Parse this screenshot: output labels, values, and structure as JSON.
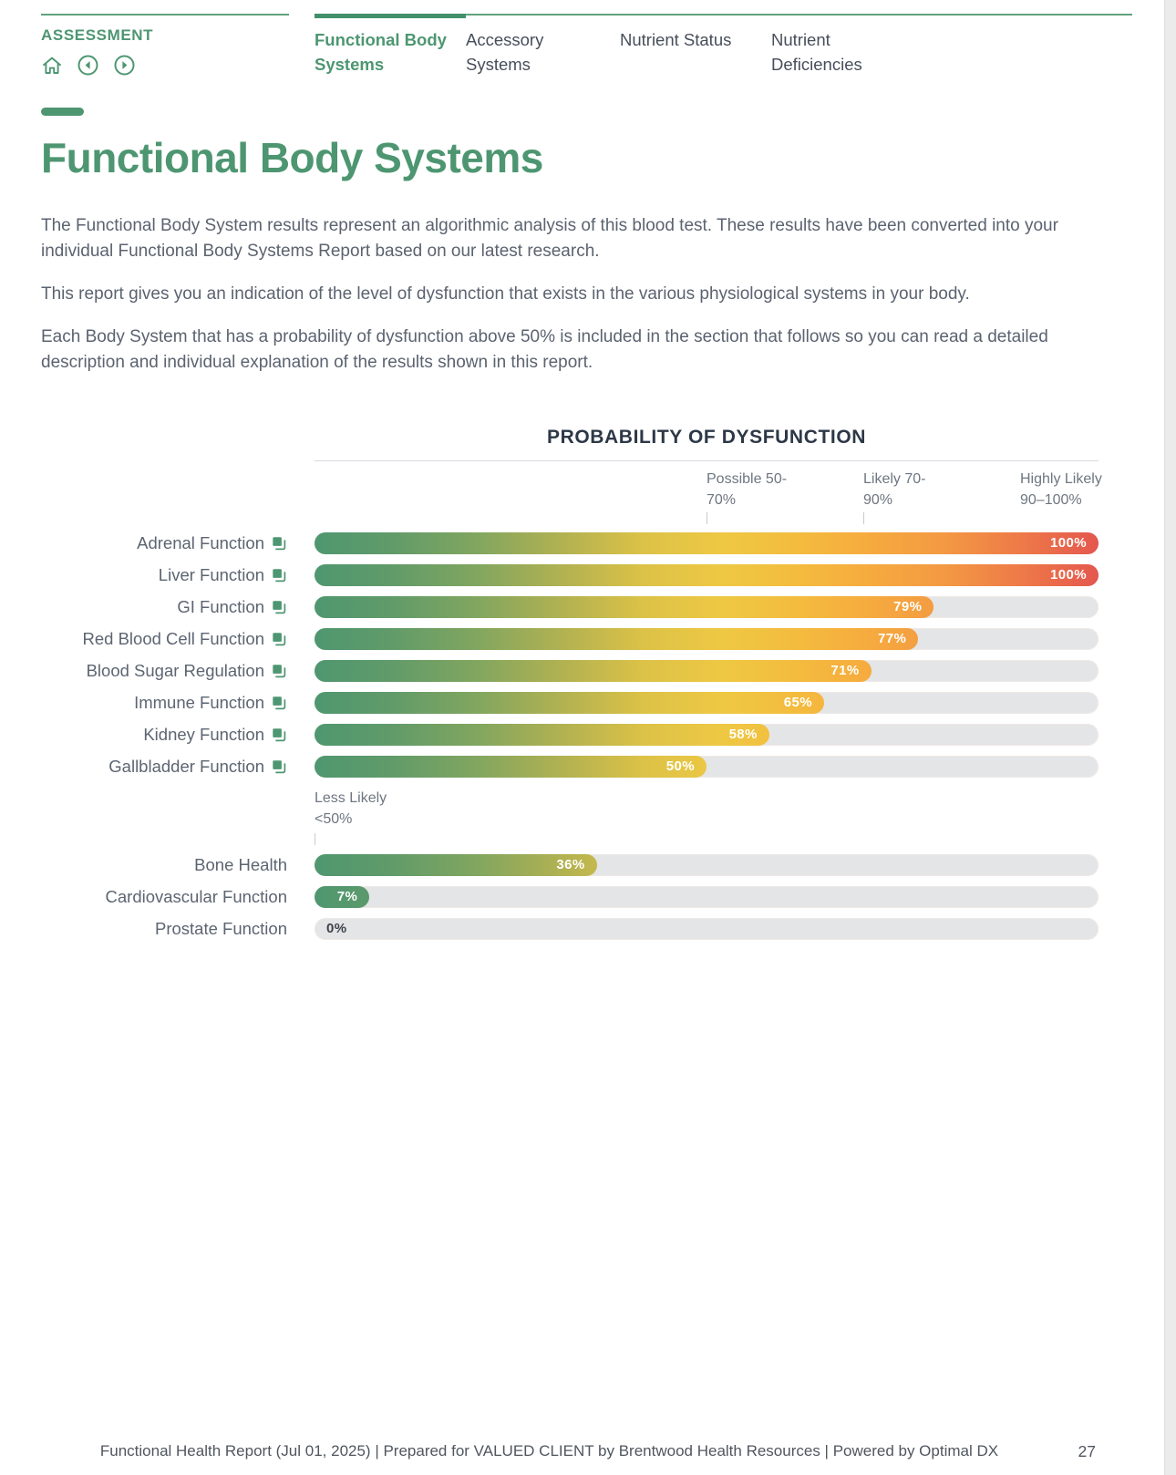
{
  "page": {
    "footer": "Functional Health Report (Jul 01, 2025) | Prepared for VALUED CLIENT by Brentwood Health Resources | Powered by Optimal DX",
    "page_number": "27"
  },
  "header": {
    "section_label": "ASSESSMENT",
    "nav_icons": [
      "home-icon",
      "prev-circle-icon",
      "next-circle-icon"
    ]
  },
  "nav": {
    "tabs": [
      {
        "label": "Functional Body Systems",
        "active": true
      },
      {
        "label": "Accessory Systems",
        "active": false
      },
      {
        "label": "Nutrient Status",
        "active": false
      },
      {
        "label": "Nutrient Deficiencies",
        "active": false
      }
    ]
  },
  "heading": "Functional Body Systems",
  "paragraphs": [
    "The Functional Body System results represent an algorithmic analysis of this blood test. These results have been converted into your individual Functional Body Systems Report based on our latest research.",
    "This report gives you an indication of the level of dysfunction that exists in the various physiological systems in your body.",
    "Each Body System that has a probability of dysfunction above 50% is included in the section that follows so you can read a detailed description and individual explanation of the results shown in this report."
  ],
  "chart_data": {
    "type": "bar",
    "orientation": "horizontal",
    "title": "PROBABILITY OF DYSFUNCTION",
    "xlim": [
      0,
      100
    ],
    "unit": "%",
    "legend_thresholds": [
      {
        "label": "Possible",
        "range": "50-70%",
        "position_pct": 50,
        "tick": true
      },
      {
        "label": "Likely",
        "range": "70-90%",
        "position_pct": 70,
        "tick": true
      },
      {
        "label": "Highly Likely",
        "range": "90–100%",
        "position_pct": 90,
        "tick": false
      }
    ],
    "less_likely_divider": {
      "label": "Less Likely",
      "range": "<50%",
      "after_row_index": 7
    },
    "categories": [
      "Adrenal Function",
      "Liver Function",
      "GI Function",
      "Red Blood Cell Function",
      "Blood Sugar Regulation",
      "Immune Function",
      "Kidney Function",
      "Gallbladder Function",
      "Bone Health",
      "Cardiovascular Function",
      "Prostate Function"
    ],
    "values": [
      100,
      100,
      79,
      77,
      71,
      65,
      58,
      50,
      36,
      7,
      0
    ],
    "value_labels": [
      "100%",
      "100%",
      "79%",
      "77%",
      "71%",
      "65%",
      "58%",
      "50%",
      "36%",
      "7%",
      "0%"
    ],
    "rows_with_link_icon": [
      0,
      1,
      2,
      3,
      4,
      5,
      6,
      7
    ],
    "colors": {
      "accent_green": "#4d9671",
      "title_navy": "#2d3847",
      "track_grey": "#e4e5e6",
      "value_text": "#ffffff",
      "zero_value_text": "#3c424c",
      "gradient_stops": [
        [
          "#4f9770",
          0
        ],
        [
          "#5f9a6a",
          9
        ],
        [
          "#7fa560",
          20
        ],
        [
          "#b3b251",
          32
        ],
        [
          "#dcc247",
          42
        ],
        [
          "#eec843",
          52
        ],
        [
          "#f4bb3e",
          62
        ],
        [
          "#f6ac3e",
          70
        ],
        [
          "#f39a43",
          80
        ],
        [
          "#ee7a48",
          90
        ],
        [
          "#e4574e",
          100
        ]
      ]
    }
  }
}
